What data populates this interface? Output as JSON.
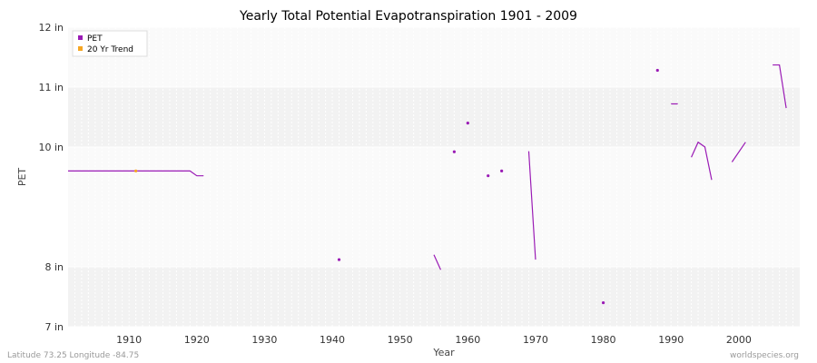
{
  "chart_data": {
    "type": "line",
    "title": "Yearly Total Potential Evapotranspiration 1901 - 2009",
    "xlabel": "Year",
    "ylabel": "PET",
    "xlim": [
      1901,
      2009
    ],
    "ylim": [
      7,
      12
    ],
    "x_ticks": [
      1910,
      1920,
      1930,
      1940,
      1950,
      1960,
      1970,
      1980,
      1990,
      2000
    ],
    "y_ticks": [
      {
        "value": 7,
        "label": "7 in"
      },
      {
        "value": 8,
        "label": "8 in"
      },
      {
        "value": 10,
        "label": "10 in"
      },
      {
        "value": 11,
        "label": "11 in"
      },
      {
        "value": 12,
        "label": "12 in"
      }
    ],
    "grid": true,
    "legend": {
      "placement": "top-left"
    },
    "series": [
      {
        "name": "PET",
        "color": "#9a1bb5",
        "segments": [
          [
            [
              1901,
              9.6
            ],
            [
              1919,
              9.6
            ],
            [
              1920,
              9.52
            ],
            [
              1921,
              9.52
            ]
          ],
          [
            [
              1941,
              8.12
            ]
          ],
          [
            [
              1955,
              8.2
            ],
            [
              1956,
              7.95
            ]
          ],
          [
            [
              1958,
              9.92
            ]
          ],
          [
            [
              1960,
              10.4
            ]
          ],
          [
            [
              1963,
              9.52
            ]
          ],
          [
            [
              1965,
              9.6
            ]
          ],
          [
            [
              1969,
              9.93
            ],
            [
              1970,
              8.12
            ]
          ],
          [
            [
              1980,
              7.4
            ]
          ],
          [
            [
              1988,
              11.28
            ]
          ],
          [
            [
              1990,
              10.72
            ],
            [
              1991,
              10.72
            ]
          ],
          [
            [
              1993,
              9.83
            ],
            [
              1994,
              10.08
            ],
            [
              1995,
              10.0
            ],
            [
              1996,
              9.45
            ]
          ],
          [
            [
              1999,
              9.75
            ],
            [
              2001,
              10.08
            ]
          ],
          [
            [
              2005,
              11.37
            ],
            [
              2006,
              11.37
            ],
            [
              2007,
              10.65
            ]
          ]
        ]
      },
      {
        "name": "20 Yr Trend",
        "color": "#f5a623",
        "segments": [
          [
            [
              1911,
              9.6
            ]
          ]
        ]
      }
    ]
  },
  "footer": {
    "left": "Latitude 73.25 Longitude -84.75",
    "right": "worldspecies.org"
  }
}
